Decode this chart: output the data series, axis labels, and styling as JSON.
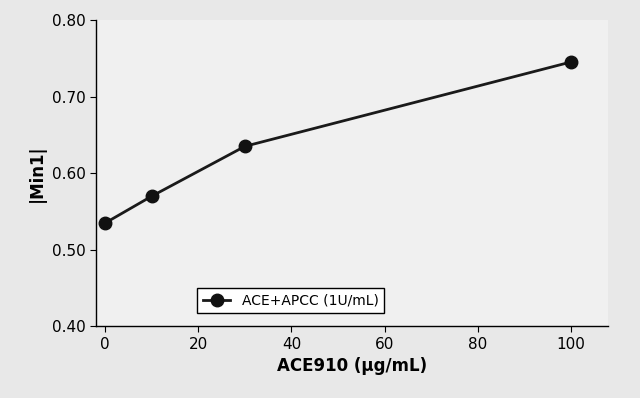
{
  "x": [
    0,
    10,
    30,
    100
  ],
  "y": [
    0.535,
    0.57,
    0.635,
    0.745
  ],
  "xlabel": "ACE910 (μg/mL)",
  "ylabel": "|Min1|",
  "xlim": [
    -2,
    108
  ],
  "ylim": [
    0.4,
    0.8
  ],
  "xticks": [
    0,
    20,
    40,
    60,
    80,
    100
  ],
  "yticks": [
    0.4,
    0.5,
    0.6,
    0.7,
    0.8
  ],
  "legend_label": "ACE+APCC (1U/mL)",
  "line_color": "#1a1a1a",
  "marker_color": "#111111",
  "marker": "o",
  "markersize": 9,
  "linewidth": 2.0,
  "figure_facecolor": "#e8e8e8",
  "axes_facecolor": "#f0f0f0",
  "title": "",
  "xlabel_fontsize": 12,
  "ylabel_fontsize": 12,
  "tick_fontsize": 11,
  "legend_fontsize": 10
}
